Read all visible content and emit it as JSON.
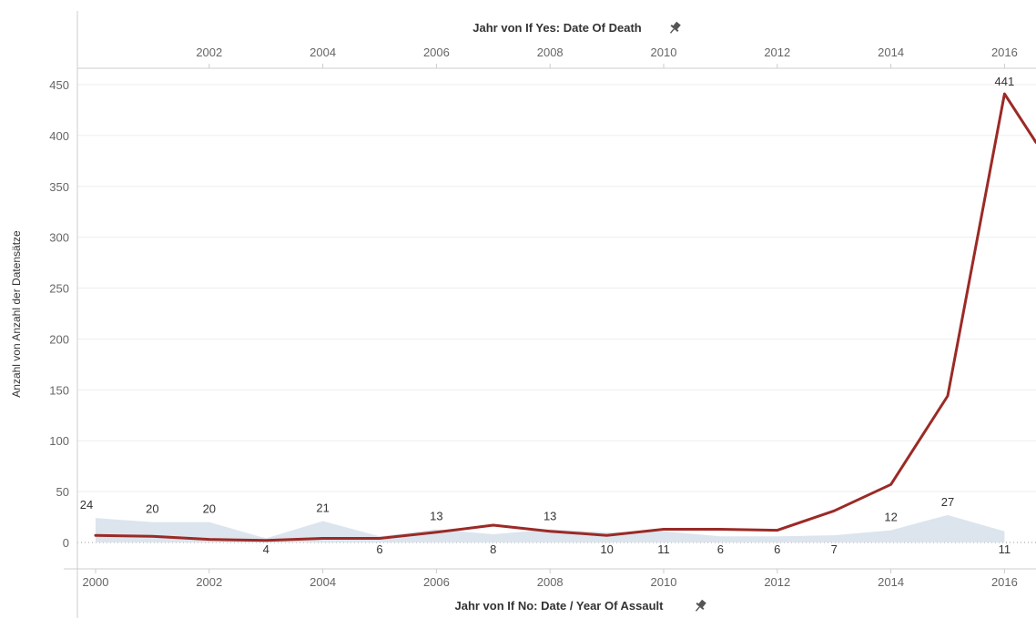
{
  "chart_data": {
    "type": "line",
    "ylabel": "Anzahl von Anzahl der Datensätze",
    "ylim": [
      -25,
      465
    ],
    "yticks": [
      0,
      50,
      100,
      150,
      200,
      250,
      300,
      350,
      400,
      450
    ],
    "grid": "horizontal",
    "top_axis": {
      "title": "Jahr von If Yes: Date Of Death",
      "pin_icon": "pin-icon",
      "ticks": [
        "2002",
        "2004",
        "2006",
        "2008",
        "2010",
        "2012",
        "2014",
        "2016"
      ]
    },
    "bottom_axis": {
      "title": "Jahr von If No: Date / Year Of Assault",
      "pin_icon": "pin-icon",
      "ticks": [
        "2000",
        "2002",
        "2004",
        "2006",
        "2008",
        "2010",
        "2012",
        "2014",
        "2016"
      ]
    },
    "series": [
      {
        "axis": "top",
        "style": "line",
        "color": "#9b2a26",
        "x": [
          2000,
          2001,
          2002,
          2003,
          2004,
          2005,
          2006,
          2007,
          2008,
          2009,
          2010,
          2011,
          2012,
          2013,
          2014,
          2015,
          2016,
          2017
        ],
        "values": [
          7,
          6,
          3,
          2,
          4,
          4,
          10,
          17,
          11,
          7,
          13,
          13,
          12,
          31,
          57,
          144,
          441,
          355
        ],
        "labels": [
          {
            "x": 2016,
            "text": "441"
          }
        ]
      },
      {
        "axis": "bottom",
        "style": "area",
        "color": "#d6e1ea",
        "x": [
          2000,
          2001,
          2002,
          2003,
          2004,
          2005,
          2006,
          2007,
          2008,
          2009,
          2010,
          2011,
          2012,
          2013,
          2014,
          2015,
          2016
        ],
        "values": [
          24,
          20,
          20,
          4,
          21,
          6,
          13,
          8,
          13,
          10,
          11,
          6,
          6,
          7,
          12,
          27,
          11
        ],
        "labels": [
          {
            "x": 2000,
            "text": "24"
          },
          {
            "x": 2001,
            "text": "20"
          },
          {
            "x": 2002,
            "text": "20"
          },
          {
            "x": 2003,
            "text": "4"
          },
          {
            "x": 2004,
            "text": "21"
          },
          {
            "x": 2005,
            "text": "6"
          },
          {
            "x": 2006,
            "text": "13"
          },
          {
            "x": 2007,
            "text": "8"
          },
          {
            "x": 2008,
            "text": "13"
          },
          {
            "x": 2009,
            "text": "10"
          },
          {
            "x": 2010,
            "text": "11"
          },
          {
            "x": 2011,
            "text": "6"
          },
          {
            "x": 2012,
            "text": "6"
          },
          {
            "x": 2013,
            "text": "7"
          },
          {
            "x": 2014,
            "text": "12"
          },
          {
            "x": 2015,
            "text": "27"
          },
          {
            "x": 2016,
            "text": "11"
          }
        ]
      }
    ]
  }
}
